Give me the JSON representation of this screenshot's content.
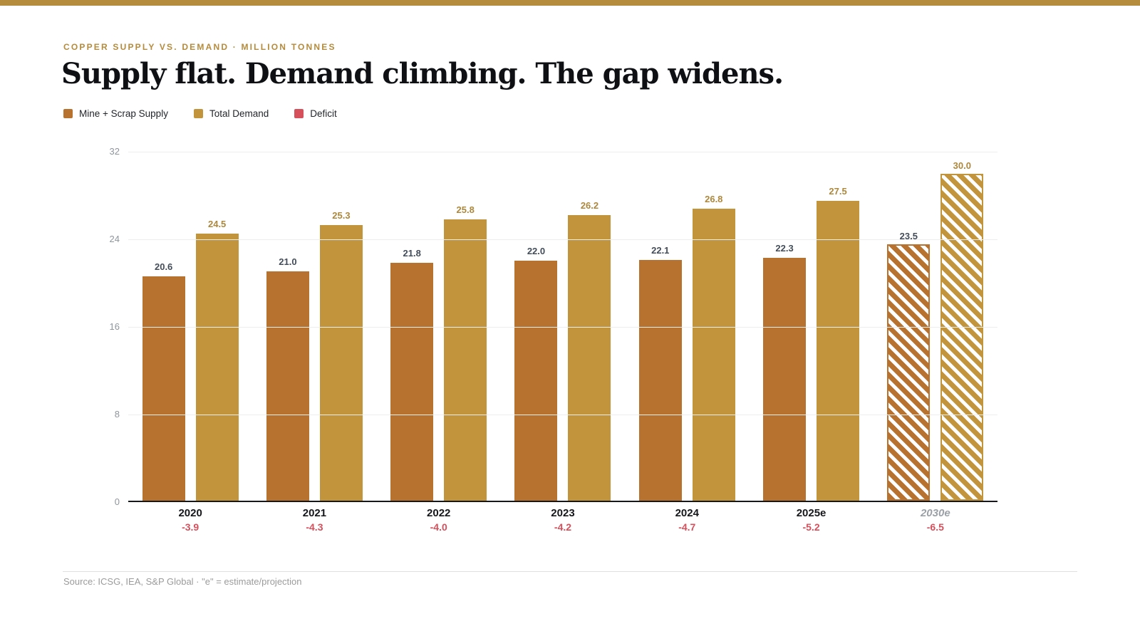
{
  "header": {
    "eyebrow": "COPPER SUPPLY VS. DEMAND · MILLION TONNES",
    "title": "Supply flat. Demand climbing. The gap widens."
  },
  "colors": {
    "accent_bar": "#b58b3d",
    "eyebrow_text": "#b58b3d",
    "supply": "#b7722f",
    "demand": "#c2953c",
    "deficit": "#d6505c",
    "supply_value_label": "#434d59",
    "demand_value_label": "#ad873c"
  },
  "legend": [
    {
      "label": "Mine + Scrap Supply",
      "color_key": "supply"
    },
    {
      "label": "Total Demand",
      "color_key": "demand"
    },
    {
      "label": "Deficit",
      "color_key": "deficit"
    }
  ],
  "chart_data": {
    "type": "bar",
    "categories": [
      "2020",
      "2021",
      "2022",
      "2023",
      "2024",
      "2025e",
      "2030e"
    ],
    "series": [
      {
        "name": "Mine + Scrap Supply",
        "color_key": "supply",
        "values": [
          20.6,
          21.0,
          21.8,
          22.0,
          22.1,
          22.3,
          23.5
        ]
      },
      {
        "name": "Total Demand",
        "color_key": "demand",
        "values": [
          24.5,
          25.3,
          25.8,
          26.2,
          26.8,
          27.5,
          30.0
        ]
      }
    ],
    "deficits": [
      -3.9,
      -4.3,
      -4.0,
      -4.2,
      -4.7,
      -5.2,
      -6.5
    ],
    "hatched_categories": [
      "2030e"
    ],
    "italic_categories": [
      "2030e"
    ],
    "yticks": [
      0,
      8,
      16,
      24,
      32
    ],
    "ylim": [
      0,
      32
    ],
    "grid": true,
    "legend_position": "top-left"
  },
  "footer": {
    "source": "Source: ICSG, IEA, S&P Global · \"e\" = estimate/projection"
  }
}
